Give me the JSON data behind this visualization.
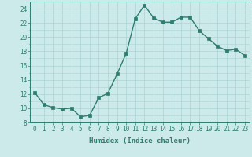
{
  "x": [
    0,
    1,
    2,
    3,
    4,
    5,
    6,
    7,
    8,
    9,
    10,
    11,
    12,
    13,
    14,
    15,
    16,
    17,
    18,
    19,
    20,
    21,
    22,
    23
  ],
  "y": [
    12.2,
    10.5,
    10.1,
    9.9,
    10.0,
    8.8,
    9.0,
    11.5,
    12.1,
    14.8,
    17.7,
    22.6,
    24.5,
    22.7,
    22.1,
    22.1,
    22.8,
    22.8,
    20.9,
    19.8,
    18.7,
    18.1,
    18.3,
    17.4
  ],
  "line_color": "#2e7d6e",
  "marker": "s",
  "markersize": 2.2,
  "linewidth": 1.0,
  "bg_color": "#cceaea",
  "grid_color": "#aad4d4",
  "xlabel": "Humidex (Indice chaleur)",
  "ylabel": "",
  "title": "",
  "xlim": [
    -0.5,
    23.5
  ],
  "ylim": [
    8,
    25
  ],
  "yticks": [
    8,
    10,
    12,
    14,
    16,
    18,
    20,
    22,
    24
  ],
  "xticks": [
    0,
    1,
    2,
    3,
    4,
    5,
    6,
    7,
    8,
    9,
    10,
    11,
    12,
    13,
    14,
    15,
    16,
    17,
    18,
    19,
    20,
    21,
    22,
    23
  ],
  "tick_fontsize": 5.5,
  "xlabel_fontsize": 6.5
}
